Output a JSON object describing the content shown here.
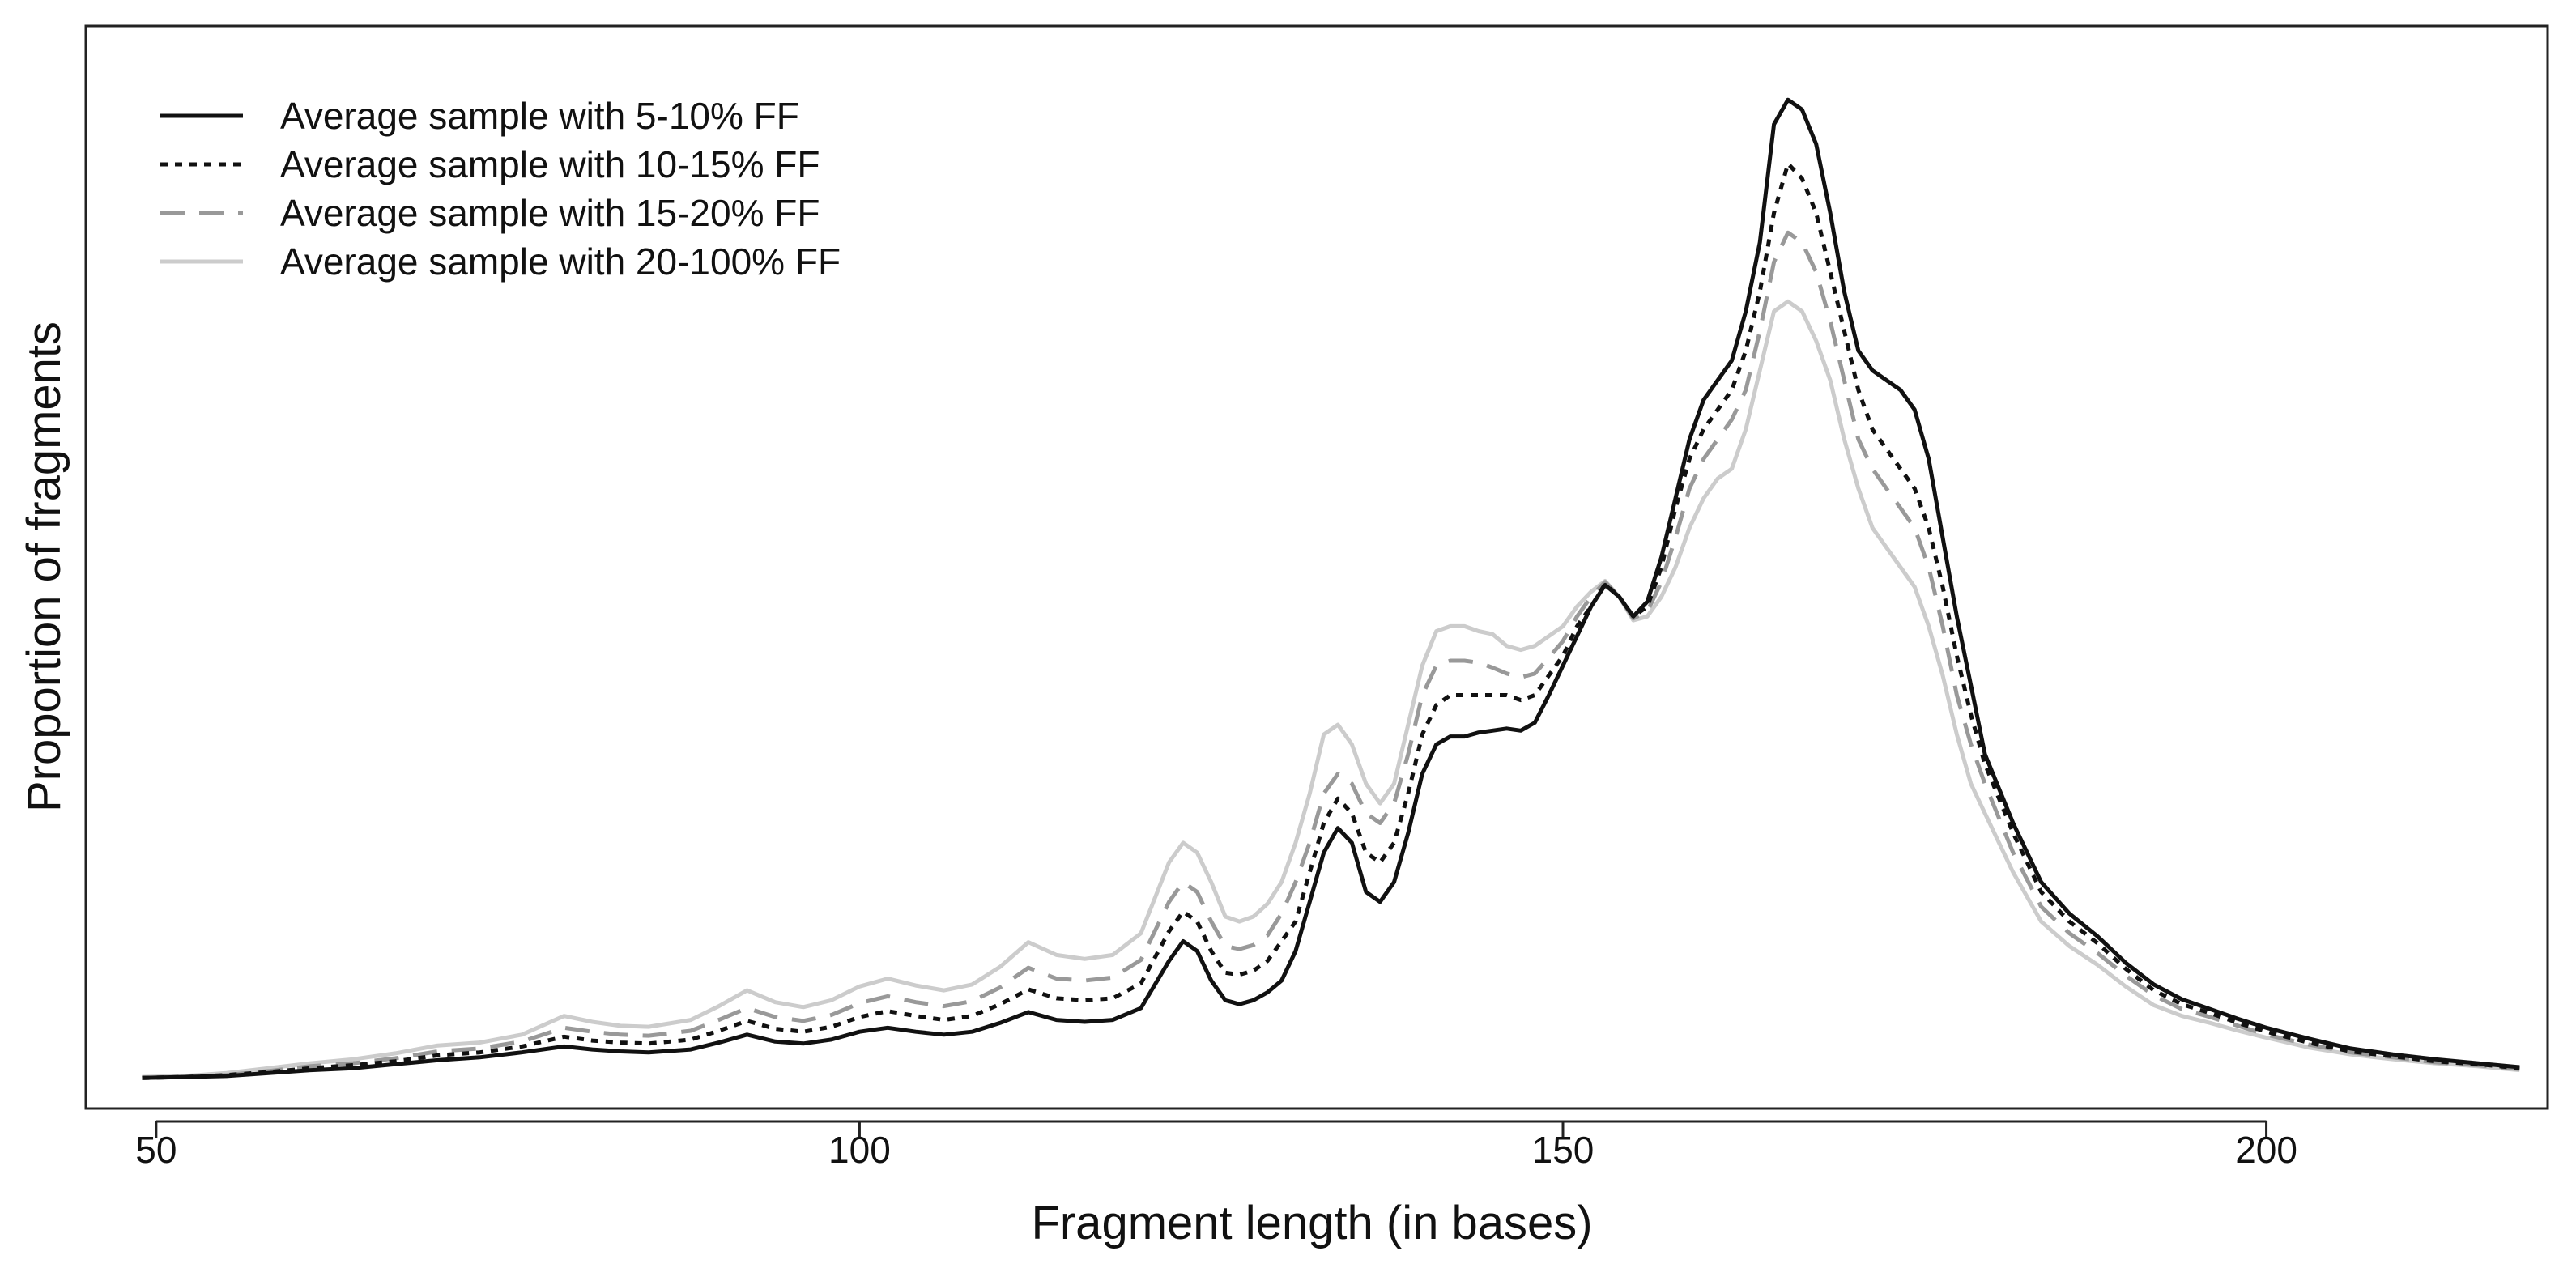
{
  "chart_data": {
    "type": "line",
    "title": "",
    "xlabel": "Fragment length (in bases)",
    "ylabel": "Proportion of fragments",
    "xlim": [
      45,
      220
    ],
    "ylim": [
      -0.03,
      1.07
    ],
    "x_ticks": [
      50,
      100,
      150,
      200
    ],
    "y_ticks_shown": false,
    "grid": false,
    "legend_position": "top-left",
    "x": [
      49,
      52,
      55,
      58,
      61,
      64,
      67,
      70,
      73,
      76,
      79,
      81,
      83,
      85,
      88,
      90,
      92,
      94,
      96,
      98,
      100,
      102,
      104,
      106,
      108,
      110,
      112,
      114,
      116,
      118,
      120,
      122,
      123,
      124,
      125,
      126,
      127,
      128,
      129,
      130,
      131,
      132,
      133,
      134,
      135,
      136,
      137,
      138,
      139,
      140,
      141,
      142,
      143,
      144,
      145,
      146,
      147,
      148,
      149,
      150,
      151,
      152,
      153,
      154,
      155,
      156,
      157,
      158,
      159,
      160,
      161,
      162,
      163,
      164,
      165,
      166,
      167,
      168,
      169,
      170,
      171,
      172,
      173,
      174,
      175,
      176,
      177,
      178,
      179,
      180,
      182,
      184,
      186,
      188,
      190,
      192,
      194,
      196,
      198,
      200,
      203,
      206,
      209,
      212,
      215,
      218
    ],
    "series": [
      {
        "name": "Average sample with 5-10% FF",
        "color": "#111111",
        "dash": "solid",
        "values": [
          0.001,
          0.002,
          0.003,
          0.006,
          0.009,
          0.011,
          0.015,
          0.019,
          0.022,
          0.027,
          0.033,
          0.03,
          0.028,
          0.027,
          0.03,
          0.037,
          0.045,
          0.038,
          0.036,
          0.04,
          0.048,
          0.052,
          0.048,
          0.045,
          0.048,
          0.057,
          0.068,
          0.06,
          0.058,
          0.06,
          0.072,
          0.12,
          0.14,
          0.13,
          0.1,
          0.08,
          0.076,
          0.08,
          0.088,
          0.1,
          0.13,
          0.18,
          0.23,
          0.255,
          0.24,
          0.19,
          0.18,
          0.2,
          0.25,
          0.31,
          0.34,
          0.348,
          0.348,
          0.352,
          0.354,
          0.356,
          0.354,
          0.362,
          0.39,
          0.42,
          0.45,
          0.48,
          0.502,
          0.49,
          0.47,
          0.485,
          0.53,
          0.59,
          0.65,
          0.69,
          0.71,
          0.73,
          0.78,
          0.85,
          0.97,
          0.995,
          0.985,
          0.95,
          0.88,
          0.8,
          0.74,
          0.72,
          0.71,
          0.7,
          0.68,
          0.63,
          0.55,
          0.47,
          0.4,
          0.33,
          0.26,
          0.2,
          0.168,
          0.145,
          0.118,
          0.096,
          0.081,
          0.071,
          0.061,
          0.052,
          0.041,
          0.031,
          0.025,
          0.02,
          0.016,
          0.012
        ]
      },
      {
        "name": "Average sample with 10-15% FF",
        "color": "#111111",
        "dash": "dotted",
        "values": [
          0.001,
          0.002,
          0.004,
          0.007,
          0.011,
          0.014,
          0.018,
          0.024,
          0.027,
          0.033,
          0.043,
          0.039,
          0.037,
          0.036,
          0.04,
          0.049,
          0.059,
          0.051,
          0.048,
          0.053,
          0.063,
          0.069,
          0.064,
          0.06,
          0.064,
          0.076,
          0.091,
          0.082,
          0.08,
          0.082,
          0.097,
          0.15,
          0.17,
          0.16,
          0.13,
          0.108,
          0.106,
          0.11,
          0.12,
          0.14,
          0.16,
          0.21,
          0.26,
          0.285,
          0.27,
          0.23,
          0.22,
          0.24,
          0.29,
          0.35,
          0.38,
          0.39,
          0.39,
          0.39,
          0.39,
          0.39,
          0.385,
          0.39,
          0.41,
          0.43,
          0.46,
          0.48,
          0.503,
          0.49,
          0.47,
          0.48,
          0.52,
          0.58,
          0.63,
          0.66,
          0.68,
          0.7,
          0.74,
          0.8,
          0.88,
          0.93,
          0.915,
          0.88,
          0.82,
          0.76,
          0.7,
          0.66,
          0.64,
          0.62,
          0.6,
          0.56,
          0.5,
          0.43,
          0.37,
          0.32,
          0.25,
          0.19,
          0.16,
          0.138,
          0.112,
          0.09,
          0.076,
          0.067,
          0.057,
          0.048,
          0.037,
          0.028,
          0.023,
          0.018,
          0.015,
          0.011
        ]
      },
      {
        "name": "Average sample with 15-20% FF",
        "color": "#999999",
        "dash": "dashed",
        "values": [
          0.001,
          0.002,
          0.004,
          0.008,
          0.013,
          0.016,
          0.021,
          0.028,
          0.031,
          0.038,
          0.052,
          0.048,
          0.045,
          0.044,
          0.049,
          0.06,
          0.072,
          0.063,
          0.059,
          0.065,
          0.077,
          0.084,
          0.078,
          0.074,
          0.079,
          0.093,
          0.113,
          0.102,
          0.1,
          0.103,
          0.121,
          0.18,
          0.2,
          0.19,
          0.16,
          0.135,
          0.132,
          0.136,
          0.146,
          0.168,
          0.2,
          0.24,
          0.29,
          0.31,
          0.3,
          0.27,
          0.26,
          0.28,
          0.33,
          0.39,
          0.42,
          0.425,
          0.425,
          0.423,
          0.418,
          0.412,
          0.408,
          0.412,
          0.428,
          0.445,
          0.47,
          0.49,
          0.505,
          0.49,
          0.468,
          0.475,
          0.505,
          0.55,
          0.6,
          0.63,
          0.65,
          0.67,
          0.7,
          0.76,
          0.83,
          0.86,
          0.85,
          0.82,
          0.77,
          0.71,
          0.65,
          0.62,
          0.6,
          0.58,
          0.56,
          0.52,
          0.46,
          0.39,
          0.34,
          0.3,
          0.23,
          0.175,
          0.148,
          0.128,
          0.105,
          0.085,
          0.071,
          0.063,
          0.054,
          0.045,
          0.035,
          0.027,
          0.022,
          0.017,
          0.014,
          0.01
        ]
      },
      {
        "name": "Average sample with 20-100% FF",
        "color": "#cccccc",
        "dash": "solid",
        "values": [
          0.002,
          0.003,
          0.006,
          0.011,
          0.016,
          0.02,
          0.026,
          0.034,
          0.037,
          0.045,
          0.064,
          0.058,
          0.054,
          0.053,
          0.06,
          0.074,
          0.09,
          0.078,
          0.073,
          0.08,
          0.094,
          0.102,
          0.095,
          0.09,
          0.096,
          0.114,
          0.139,
          0.126,
          0.122,
          0.126,
          0.148,
          0.22,
          0.24,
          0.23,
          0.2,
          0.165,
          0.16,
          0.165,
          0.178,
          0.2,
          0.24,
          0.29,
          0.35,
          0.36,
          0.34,
          0.3,
          0.28,
          0.3,
          0.36,
          0.42,
          0.455,
          0.46,
          0.46,
          0.455,
          0.452,
          0.44,
          0.436,
          0.44,
          0.45,
          0.46,
          0.48,
          0.495,
          0.506,
          0.49,
          0.466,
          0.47,
          0.49,
          0.52,
          0.56,
          0.59,
          0.61,
          0.62,
          0.66,
          0.72,
          0.78,
          0.79,
          0.78,
          0.75,
          0.71,
          0.65,
          0.6,
          0.56,
          0.54,
          0.52,
          0.5,
          0.46,
          0.41,
          0.35,
          0.3,
          0.27,
          0.21,
          0.16,
          0.135,
          0.116,
          0.094,
          0.075,
          0.064,
          0.057,
          0.049,
          0.042,
          0.032,
          0.025,
          0.02,
          0.016,
          0.013,
          0.009
        ]
      }
    ]
  }
}
